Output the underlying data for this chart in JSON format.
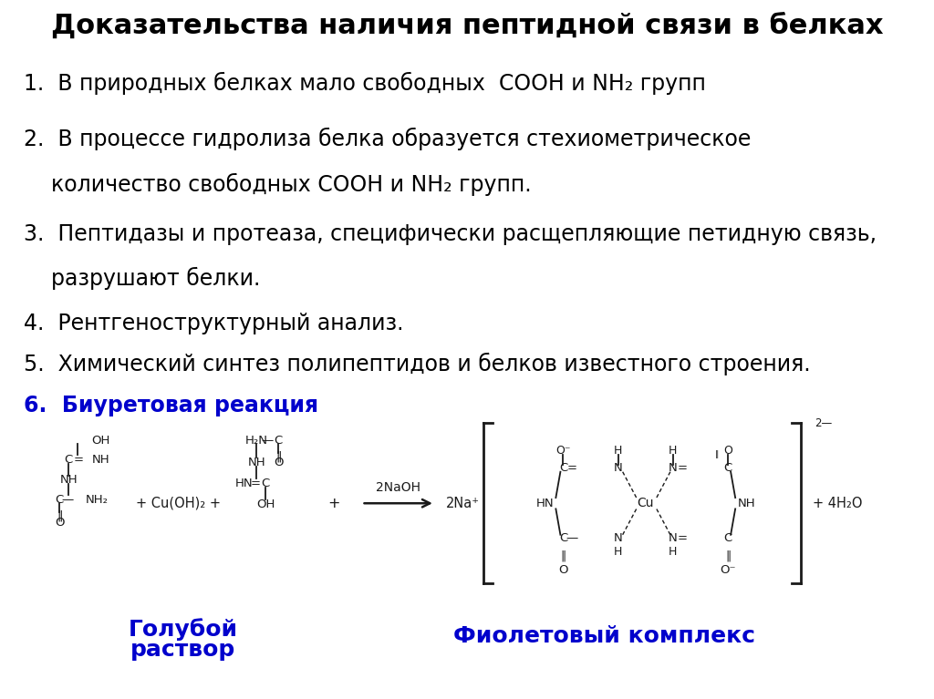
{
  "title": "Доказательства наличия пептидной связи в белках",
  "title_fontsize": 22,
  "background_color": "#ffffff",
  "text_color": "#000000",
  "blue_color": "#0000cc",
  "item1": "1.  В природных белках мало свободных  COOH и NH₂ групп",
  "item2a": "2.  В процессе гидролиза белка образуется стехиометрическое",
  "item2b": "    количество свободных COOH и NH₂ групп.",
  "item3a": "3.  Пептидазы и протеаза, специфически расщепляющие петидную связь,",
  "item3b": "    разрушают белки.",
  "item4": "4.  Рентгеноструктурный анализ.",
  "item5": "5.  Химический синтез полипептидов и белков известного строения.",
  "item6": "6.  Биуретовая реакция",
  "label1": "Голубой\nраствор",
  "label2": "Фиолетовый комплекс",
  "item_fontsize": 17,
  "label_fontsize": 18,
  "chem_color": "#1a1a1a"
}
